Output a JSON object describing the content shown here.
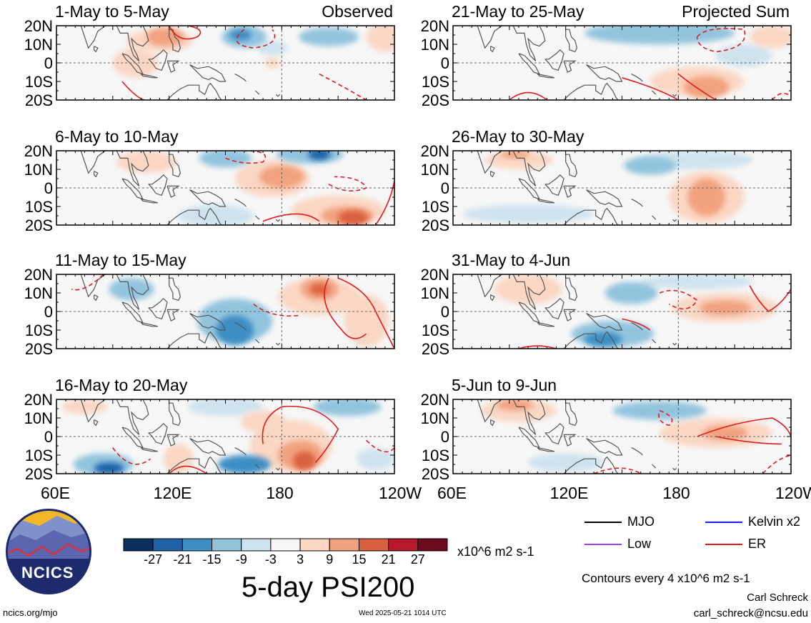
{
  "chart_data": {
    "type": "heatmap",
    "title": "5-day PSI200",
    "units": "x10^6 m2 s-1",
    "left_column_label": "Observed",
    "right_column_label": "Projected Sum",
    "lat_ticks": [
      "20N",
      "10N",
      "0",
      "10S",
      "20S"
    ],
    "lon_ticks": [
      "60E",
      "120E",
      "180",
      "120W"
    ],
    "lat_range": [
      -20,
      20
    ],
    "lon_range": [
      60,
      240
    ],
    "colorbar_ticks": [
      "-27",
      "-21",
      "-15",
      "-9",
      "-3",
      "3",
      "9",
      "15",
      "21",
      "27"
    ],
    "colorbar_colors": [
      "#0b2f5c",
      "#1f62a8",
      "#3e8ec4",
      "#93c4de",
      "#cfe3ef",
      "#f7f7f7",
      "#fbd7c4",
      "#f2a27f",
      "#d9603f",
      "#b5192b",
      "#6e0a1d"
    ],
    "contour_note": "Contours every 4 x10^6 m2 s-1",
    "legend": [
      {
        "label": "MJO",
        "color": "#000000"
      },
      {
        "label": "Kelvin x2",
        "color": "#1a1aff"
      },
      {
        "label": "Low",
        "color": "#a040e0"
      },
      {
        "label": "ER",
        "color": "#e41a1c"
      }
    ],
    "panels": [
      {
        "title": "1-May to 5-May",
        "column": "Observed",
        "blobs": [
          {
            "lon": 115,
            "lat": 12,
            "rx": 18,
            "ry": 6,
            "v": 9
          },
          {
            "lon": 118,
            "lat": 14,
            "rx": 10,
            "ry": 5,
            "v": 15
          },
          {
            "lon": 80,
            "lat": 4,
            "rx": 18,
            "ry": 10,
            "v": 3
          },
          {
            "lon": 102,
            "lat": 0,
            "rx": 12,
            "ry": 8,
            "v": 9
          },
          {
            "lon": 160,
            "lat": 14,
            "rx": 12,
            "ry": 6,
            "v": -9
          },
          {
            "lon": 158,
            "lat": 15,
            "rx": 6,
            "ry": 3,
            "v": -15
          },
          {
            "lon": 205,
            "lat": 14,
            "rx": 16,
            "ry": 5,
            "v": -9
          },
          {
            "lon": 175,
            "lat": 8,
            "rx": 8,
            "ry": 4,
            "v": -3
          },
          {
            "lon": 235,
            "lat": 14,
            "rx": 10,
            "ry": 8,
            "v": 9
          },
          {
            "lon": 130,
            "lat": -10,
            "rx": 30,
            "ry": 7,
            "v": 3
          },
          {
            "lon": 200,
            "lat": -6,
            "rx": 20,
            "ry": 8,
            "v": 3
          },
          {
            "lon": 175,
            "lat": 0,
            "rx": 4,
            "ry": 3,
            "v": 9
          }
        ]
      },
      {
        "title": "6-May to 10-May",
        "column": "Observed",
        "blobs": [
          {
            "lon": 108,
            "lat": 14,
            "rx": 16,
            "ry": 6,
            "v": 9
          },
          {
            "lon": 175,
            "lat": 5,
            "rx": 20,
            "ry": 10,
            "v": 9
          },
          {
            "lon": 180,
            "lat": 6,
            "rx": 12,
            "ry": 6,
            "v": 15
          },
          {
            "lon": 210,
            "lat": -12,
            "rx": 25,
            "ry": 8,
            "v": 9
          },
          {
            "lon": 215,
            "lat": -15,
            "rx": 14,
            "ry": 5,
            "v": 15
          },
          {
            "lon": 218,
            "lat": -16,
            "rx": 8,
            "ry": 4,
            "v": 21
          },
          {
            "lon": 150,
            "lat": 16,
            "rx": 14,
            "ry": 5,
            "v": -9
          },
          {
            "lon": 195,
            "lat": 18,
            "rx": 18,
            "ry": 5,
            "v": -9
          },
          {
            "lon": 200,
            "lat": 18,
            "rx": 6,
            "ry": 3,
            "v": -21
          },
          {
            "lon": 75,
            "lat": 5,
            "rx": 15,
            "ry": 12,
            "v": 3
          },
          {
            "lon": 145,
            "lat": -15,
            "rx": 20,
            "ry": 6,
            "v": -3
          },
          {
            "lon": 210,
            "lat": 2,
            "rx": 12,
            "ry": 4,
            "v": 3
          }
        ]
      },
      {
        "title": "11-May to 15-May",
        "column": "Observed",
        "blobs": [
          {
            "lon": 200,
            "lat": 8,
            "rx": 22,
            "ry": 10,
            "v": 9
          },
          {
            "lon": 200,
            "lat": 12,
            "rx": 10,
            "ry": 6,
            "v": 15
          },
          {
            "lon": 200,
            "lat": 12,
            "rx": 5,
            "ry": 3,
            "v": 21
          },
          {
            "lon": 225,
            "lat": -5,
            "rx": 12,
            "ry": 14,
            "v": 9
          },
          {
            "lon": 100,
            "lat": 12,
            "rx": 12,
            "ry": 6,
            "v": -9
          },
          {
            "lon": 155,
            "lat": -5,
            "rx": 20,
            "ry": 12,
            "v": -9
          },
          {
            "lon": 155,
            "lat": -10,
            "rx": 10,
            "ry": 8,
            "v": -15
          },
          {
            "lon": 130,
            "lat": 12,
            "rx": 12,
            "ry": 6,
            "v": 3
          },
          {
            "lon": 95,
            "lat": -12,
            "rx": 25,
            "ry": 6,
            "v": 3
          },
          {
            "lon": 180,
            "lat": -10,
            "rx": 12,
            "ry": 4,
            "v": 3
          },
          {
            "lon": 75,
            "lat": 5,
            "rx": 12,
            "ry": 10,
            "v": 3
          }
        ]
      },
      {
        "title": "16-May to 20-May",
        "column": "Observed",
        "blobs": [
          {
            "lon": 185,
            "lat": -5,
            "rx": 22,
            "ry": 14,
            "v": 9
          },
          {
            "lon": 190,
            "lat": -10,
            "rx": 12,
            "ry": 8,
            "v": 15
          },
          {
            "lon": 192,
            "lat": -13,
            "rx": 6,
            "ry": 5,
            "v": 21
          },
          {
            "lon": 170,
            "lat": 8,
            "rx": 12,
            "ry": 6,
            "v": 9
          },
          {
            "lon": 85,
            "lat": -15,
            "rx": 16,
            "ry": 6,
            "v": -9
          },
          {
            "lon": 88,
            "lat": -17,
            "rx": 8,
            "ry": 3,
            "v": -21
          },
          {
            "lon": 160,
            "lat": -15,
            "rx": 14,
            "ry": 5,
            "v": -15
          },
          {
            "lon": 125,
            "lat": -12,
            "rx": 8,
            "ry": 8,
            "v": 9
          },
          {
            "lon": 125,
            "lat": 5,
            "rx": 6,
            "ry": 14,
            "v": 3
          },
          {
            "lon": 150,
            "lat": 16,
            "rx": 20,
            "ry": 5,
            "v": -3
          },
          {
            "lon": 215,
            "lat": 16,
            "rx": 18,
            "ry": 5,
            "v": -9
          },
          {
            "lon": 75,
            "lat": 16,
            "rx": 12,
            "ry": 4,
            "v": 9
          },
          {
            "lon": 230,
            "lat": -12,
            "rx": 10,
            "ry": 6,
            "v": -3
          }
        ]
      },
      {
        "title": "21-May to 25-May",
        "column": "Projected Sum",
        "blobs": [
          {
            "lon": 170,
            "lat": 16,
            "rx": 40,
            "ry": 6,
            "v": -9
          },
          {
            "lon": 100,
            "lat": 14,
            "rx": 22,
            "ry": 6,
            "v": 3
          },
          {
            "lon": 190,
            "lat": -10,
            "rx": 25,
            "ry": 8,
            "v": 9
          },
          {
            "lon": 195,
            "lat": -13,
            "rx": 12,
            "ry": 6,
            "v": 15
          },
          {
            "lon": 230,
            "lat": 14,
            "rx": 12,
            "ry": 6,
            "v": 9
          },
          {
            "lon": 90,
            "lat": -12,
            "rx": 20,
            "ry": 6,
            "v": 3
          },
          {
            "lon": 215,
            "lat": 4,
            "rx": 15,
            "ry": 6,
            "v": -3
          }
        ]
      },
      {
        "title": "26-May to 30-May",
        "column": "Projected Sum",
        "blobs": [
          {
            "lon": 95,
            "lat": 15,
            "rx": 18,
            "ry": 5,
            "v": 9
          },
          {
            "lon": 93,
            "lat": 18,
            "rx": 8,
            "ry": 2,
            "v": 15
          },
          {
            "lon": 195,
            "lat": -5,
            "rx": 20,
            "ry": 14,
            "v": 9
          },
          {
            "lon": 195,
            "lat": -5,
            "rx": 10,
            "ry": 10,
            "v": 15
          },
          {
            "lon": 165,
            "lat": 12,
            "rx": 14,
            "ry": 5,
            "v": -9
          },
          {
            "lon": 190,
            "lat": 15,
            "rx": 30,
            "ry": 5,
            "v": -3
          },
          {
            "lon": 100,
            "lat": -14,
            "rx": 35,
            "ry": 5,
            "v": -3
          },
          {
            "lon": 225,
            "lat": 4,
            "rx": 10,
            "ry": 10,
            "v": 3
          }
        ]
      },
      {
        "title": "31-May to 4-Jun",
        "column": "Projected Sum",
        "blobs": [
          {
            "lon": 205,
            "lat": 2,
            "rx": 28,
            "ry": 8,
            "v": 9
          },
          {
            "lon": 205,
            "lat": 2,
            "rx": 14,
            "ry": 4,
            "v": 15
          },
          {
            "lon": 100,
            "lat": 12,
            "rx": 18,
            "ry": 8,
            "v": 9
          },
          {
            "lon": 155,
            "lat": 10,
            "rx": 14,
            "ry": 6,
            "v": -9
          },
          {
            "lon": 145,
            "lat": -12,
            "rx": 22,
            "ry": 7,
            "v": -9
          },
          {
            "lon": 140,
            "lat": -15,
            "rx": 10,
            "ry": 4,
            "v": -15
          },
          {
            "lon": 190,
            "lat": 16,
            "rx": 30,
            "ry": 4,
            "v": -3
          },
          {
            "lon": 90,
            "lat": -14,
            "rx": 25,
            "ry": 6,
            "v": 3
          }
        ]
      },
      {
        "title": "5-Jun to 9-Jun",
        "column": "Projected Sum",
        "blobs": [
          {
            "lon": 95,
            "lat": 14,
            "rx": 20,
            "ry": 6,
            "v": 9
          },
          {
            "lon": 93,
            "lat": 17,
            "rx": 10,
            "ry": 3,
            "v": 15
          },
          {
            "lon": 200,
            "lat": 2,
            "rx": 30,
            "ry": 8,
            "v": 9
          },
          {
            "lon": 205,
            "lat": 2,
            "rx": 12,
            "ry": 4,
            "v": 15
          },
          {
            "lon": 170,
            "lat": 14,
            "rx": 25,
            "ry": 5,
            "v": -9
          },
          {
            "lon": 165,
            "lat": -10,
            "rx": 35,
            "ry": 8,
            "v": 3
          },
          {
            "lon": 120,
            "lat": -14,
            "rx": 20,
            "ry": 5,
            "v": -3
          }
        ]
      }
    ]
  },
  "credits": {
    "org_logo_text": "NCICS",
    "website": "ncics.org/mjo",
    "timestamp": "Wed 2025-05-21 1014 UTC",
    "author": "Carl Schreck",
    "email": "carl_schreck@ncsu.edu"
  }
}
